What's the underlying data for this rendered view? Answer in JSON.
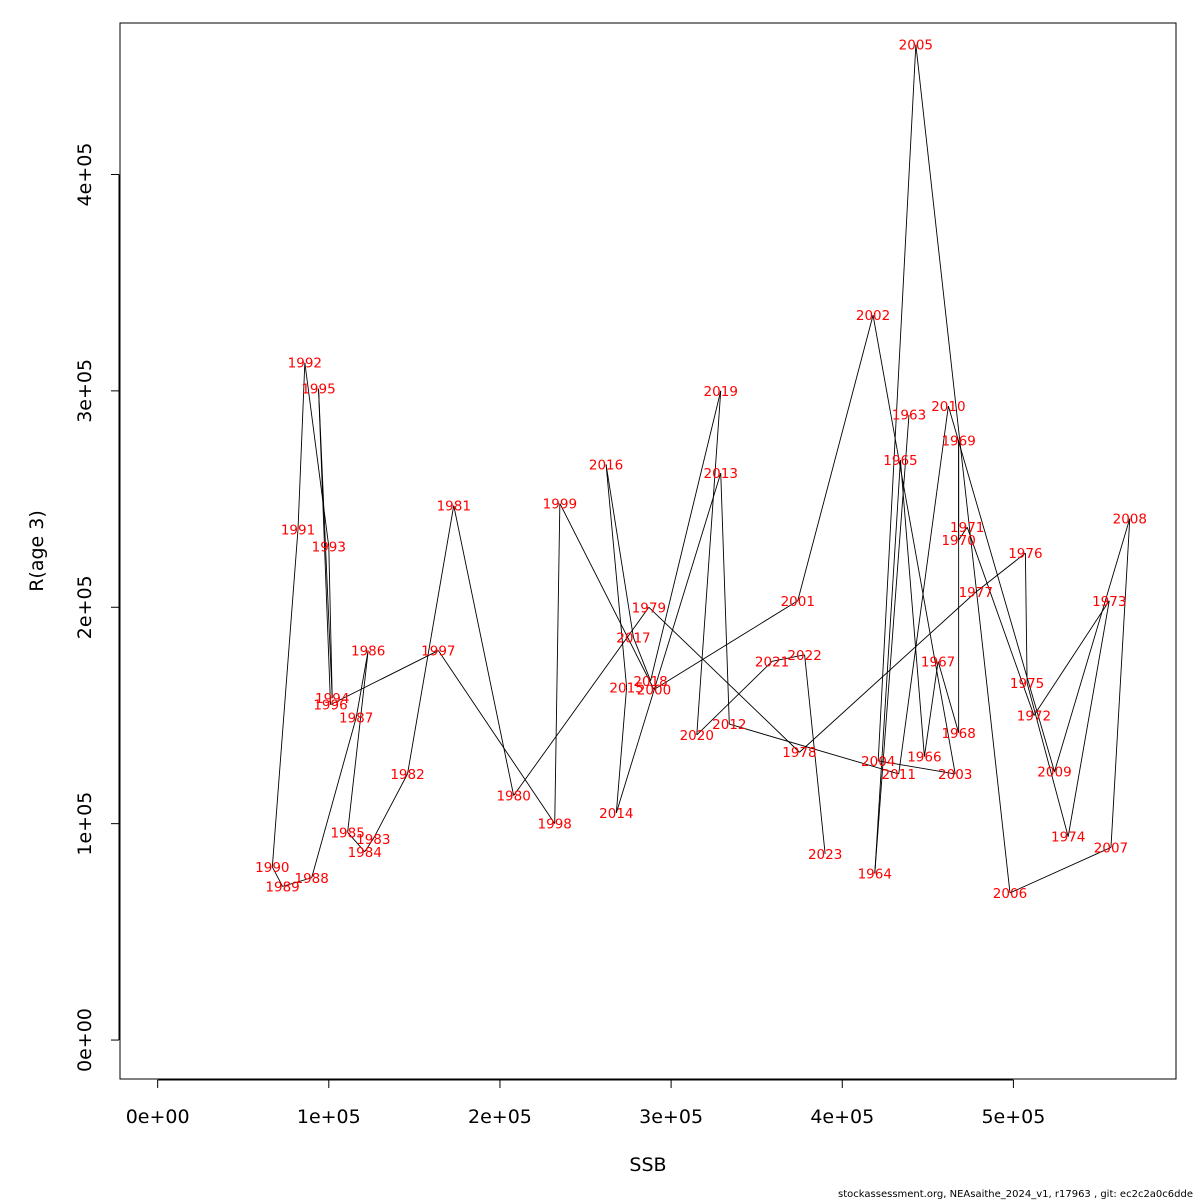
{
  "chart_data": {
    "type": "line",
    "title": "",
    "xlabel": "SSB",
    "ylabel": "R(age 3)",
    "xlim": [
      -22000,
      595000
    ],
    "ylim": [
      -18000,
      470000
    ],
    "x_ticks": [
      0,
      100000,
      200000,
      300000,
      400000,
      500000
    ],
    "x_tick_labels": [
      "0e+00",
      "1e+05",
      "2e+05",
      "3e+05",
      "4e+05",
      "5e+05"
    ],
    "y_ticks": [
      0,
      100000,
      200000,
      300000,
      400000
    ],
    "y_tick_labels": [
      "0e+00",
      "1e+05",
      "2e+05",
      "3e+05",
      "4e+05"
    ],
    "grid": false,
    "line_color": "#000000",
    "label_color": "#ff0000",
    "points": [
      {
        "label": "1963",
        "x": 439000,
        "y": 289000
      },
      {
        "label": "1964",
        "x": 419000,
        "y": 77000
      },
      {
        "label": "1965",
        "x": 434000,
        "y": 268000
      },
      {
        "label": "1966",
        "x": 448000,
        "y": 131000
      },
      {
        "label": "1967",
        "x": 456000,
        "y": 175000
      },
      {
        "label": "1968",
        "x": 468000,
        "y": 142000
      },
      {
        "label": "1969",
        "x": 468000,
        "y": 277000
      },
      {
        "label": "1970",
        "x": 468000,
        "y": 231000
      },
      {
        "label": "1971",
        "x": 473000,
        "y": 237000
      },
      {
        "label": "1972",
        "x": 512000,
        "y": 150000
      },
      {
        "label": "1973",
        "x": 556000,
        "y": 203000
      },
      {
        "label": "1974",
        "x": 532000,
        "y": 94000
      },
      {
        "label": "1975",
        "x": 508000,
        "y": 165000
      },
      {
        "label": "1976",
        "x": 507000,
        "y": 225000
      },
      {
        "label": "1977",
        "x": 478000,
        "y": 207000
      },
      {
        "label": "1978",
        "x": 375000,
        "y": 133000
      },
      {
        "label": "1979",
        "x": 287000,
        "y": 200000
      },
      {
        "label": "1980",
        "x": 208000,
        "y": 113000
      },
      {
        "label": "1981",
        "x": 173000,
        "y": 247000
      },
      {
        "label": "1982",
        "x": 146000,
        "y": 123000
      },
      {
        "label": "1983",
        "x": 126000,
        "y": 93000
      },
      {
        "label": "1984",
        "x": 121000,
        "y": 87000
      },
      {
        "label": "1985",
        "x": 111000,
        "y": 96000
      },
      {
        "label": "1986",
        "x": 123000,
        "y": 180000
      },
      {
        "label": "1987",
        "x": 116000,
        "y": 149000
      },
      {
        "label": "1988",
        "x": 90000,
        "y": 75000
      },
      {
        "label": "1989",
        "x": 73000,
        "y": 71000
      },
      {
        "label": "1990",
        "x": 67000,
        "y": 80000
      },
      {
        "label": "1991",
        "x": 82000,
        "y": 236000
      },
      {
        "label": "1992",
        "x": 86000,
        "y": 313000
      },
      {
        "label": "1993",
        "x": 100000,
        "y": 228000
      },
      {
        "label": "1994",
        "x": 102000,
        "y": 158000
      },
      {
        "label": "1995",
        "x": 94000,
        "y": 301000
      },
      {
        "label": "1996",
        "x": 101000,
        "y": 155000
      },
      {
        "label": "1997",
        "x": 164000,
        "y": 180000
      },
      {
        "label": "1998",
        "x": 232000,
        "y": 100000
      },
      {
        "label": "1999",
        "x": 235000,
        "y": 248000
      },
      {
        "label": "2000",
        "x": 290000,
        "y": 162000
      },
      {
        "label": "2001",
        "x": 374000,
        "y": 203000
      },
      {
        "label": "2002",
        "x": 418000,
        "y": 335000
      },
      {
        "label": "2003",
        "x": 466000,
        "y": 123000
      },
      {
        "label": "2004",
        "x": 421000,
        "y": 129000
      },
      {
        "label": "2005",
        "x": 443000,
        "y": 460000
      },
      {
        "label": "2006",
        "x": 498000,
        "y": 68000
      },
      {
        "label": "2007",
        "x": 557000,
        "y": 89000
      },
      {
        "label": "2008",
        "x": 568000,
        "y": 241000
      },
      {
        "label": "2009",
        "x": 524000,
        "y": 124000
      },
      {
        "label": "2010",
        "x": 462000,
        "y": 293000
      },
      {
        "label": "2011",
        "x": 433000,
        "y": 123000
      },
      {
        "label": "2012",
        "x": 334000,
        "y": 146000
      },
      {
        "label": "2013",
        "x": 329000,
        "y": 262000
      },
      {
        "label": "2014",
        "x": 268000,
        "y": 105000
      },
      {
        "label": "2015",
        "x": 274000,
        "y": 163000
      },
      {
        "label": "2016",
        "x": 262000,
        "y": 266000
      },
      {
        "label": "2017",
        "x": 278000,
        "y": 186000
      },
      {
        "label": "2018",
        "x": 288000,
        "y": 166000
      },
      {
        "label": "2019",
        "x": 329000,
        "y": 300000
      },
      {
        "label": "2020",
        "x": 315000,
        "y": 141000
      },
      {
        "label": "2021",
        "x": 359000,
        "y": 175000
      },
      {
        "label": "2022",
        "x": 378000,
        "y": 178000
      },
      {
        "label": "2023",
        "x": 390000,
        "y": 86000
      }
    ]
  },
  "footer": "stockassessment.org, NEAsaithe_2024_v1, r17963 , git: ec2c2a0c6dde"
}
